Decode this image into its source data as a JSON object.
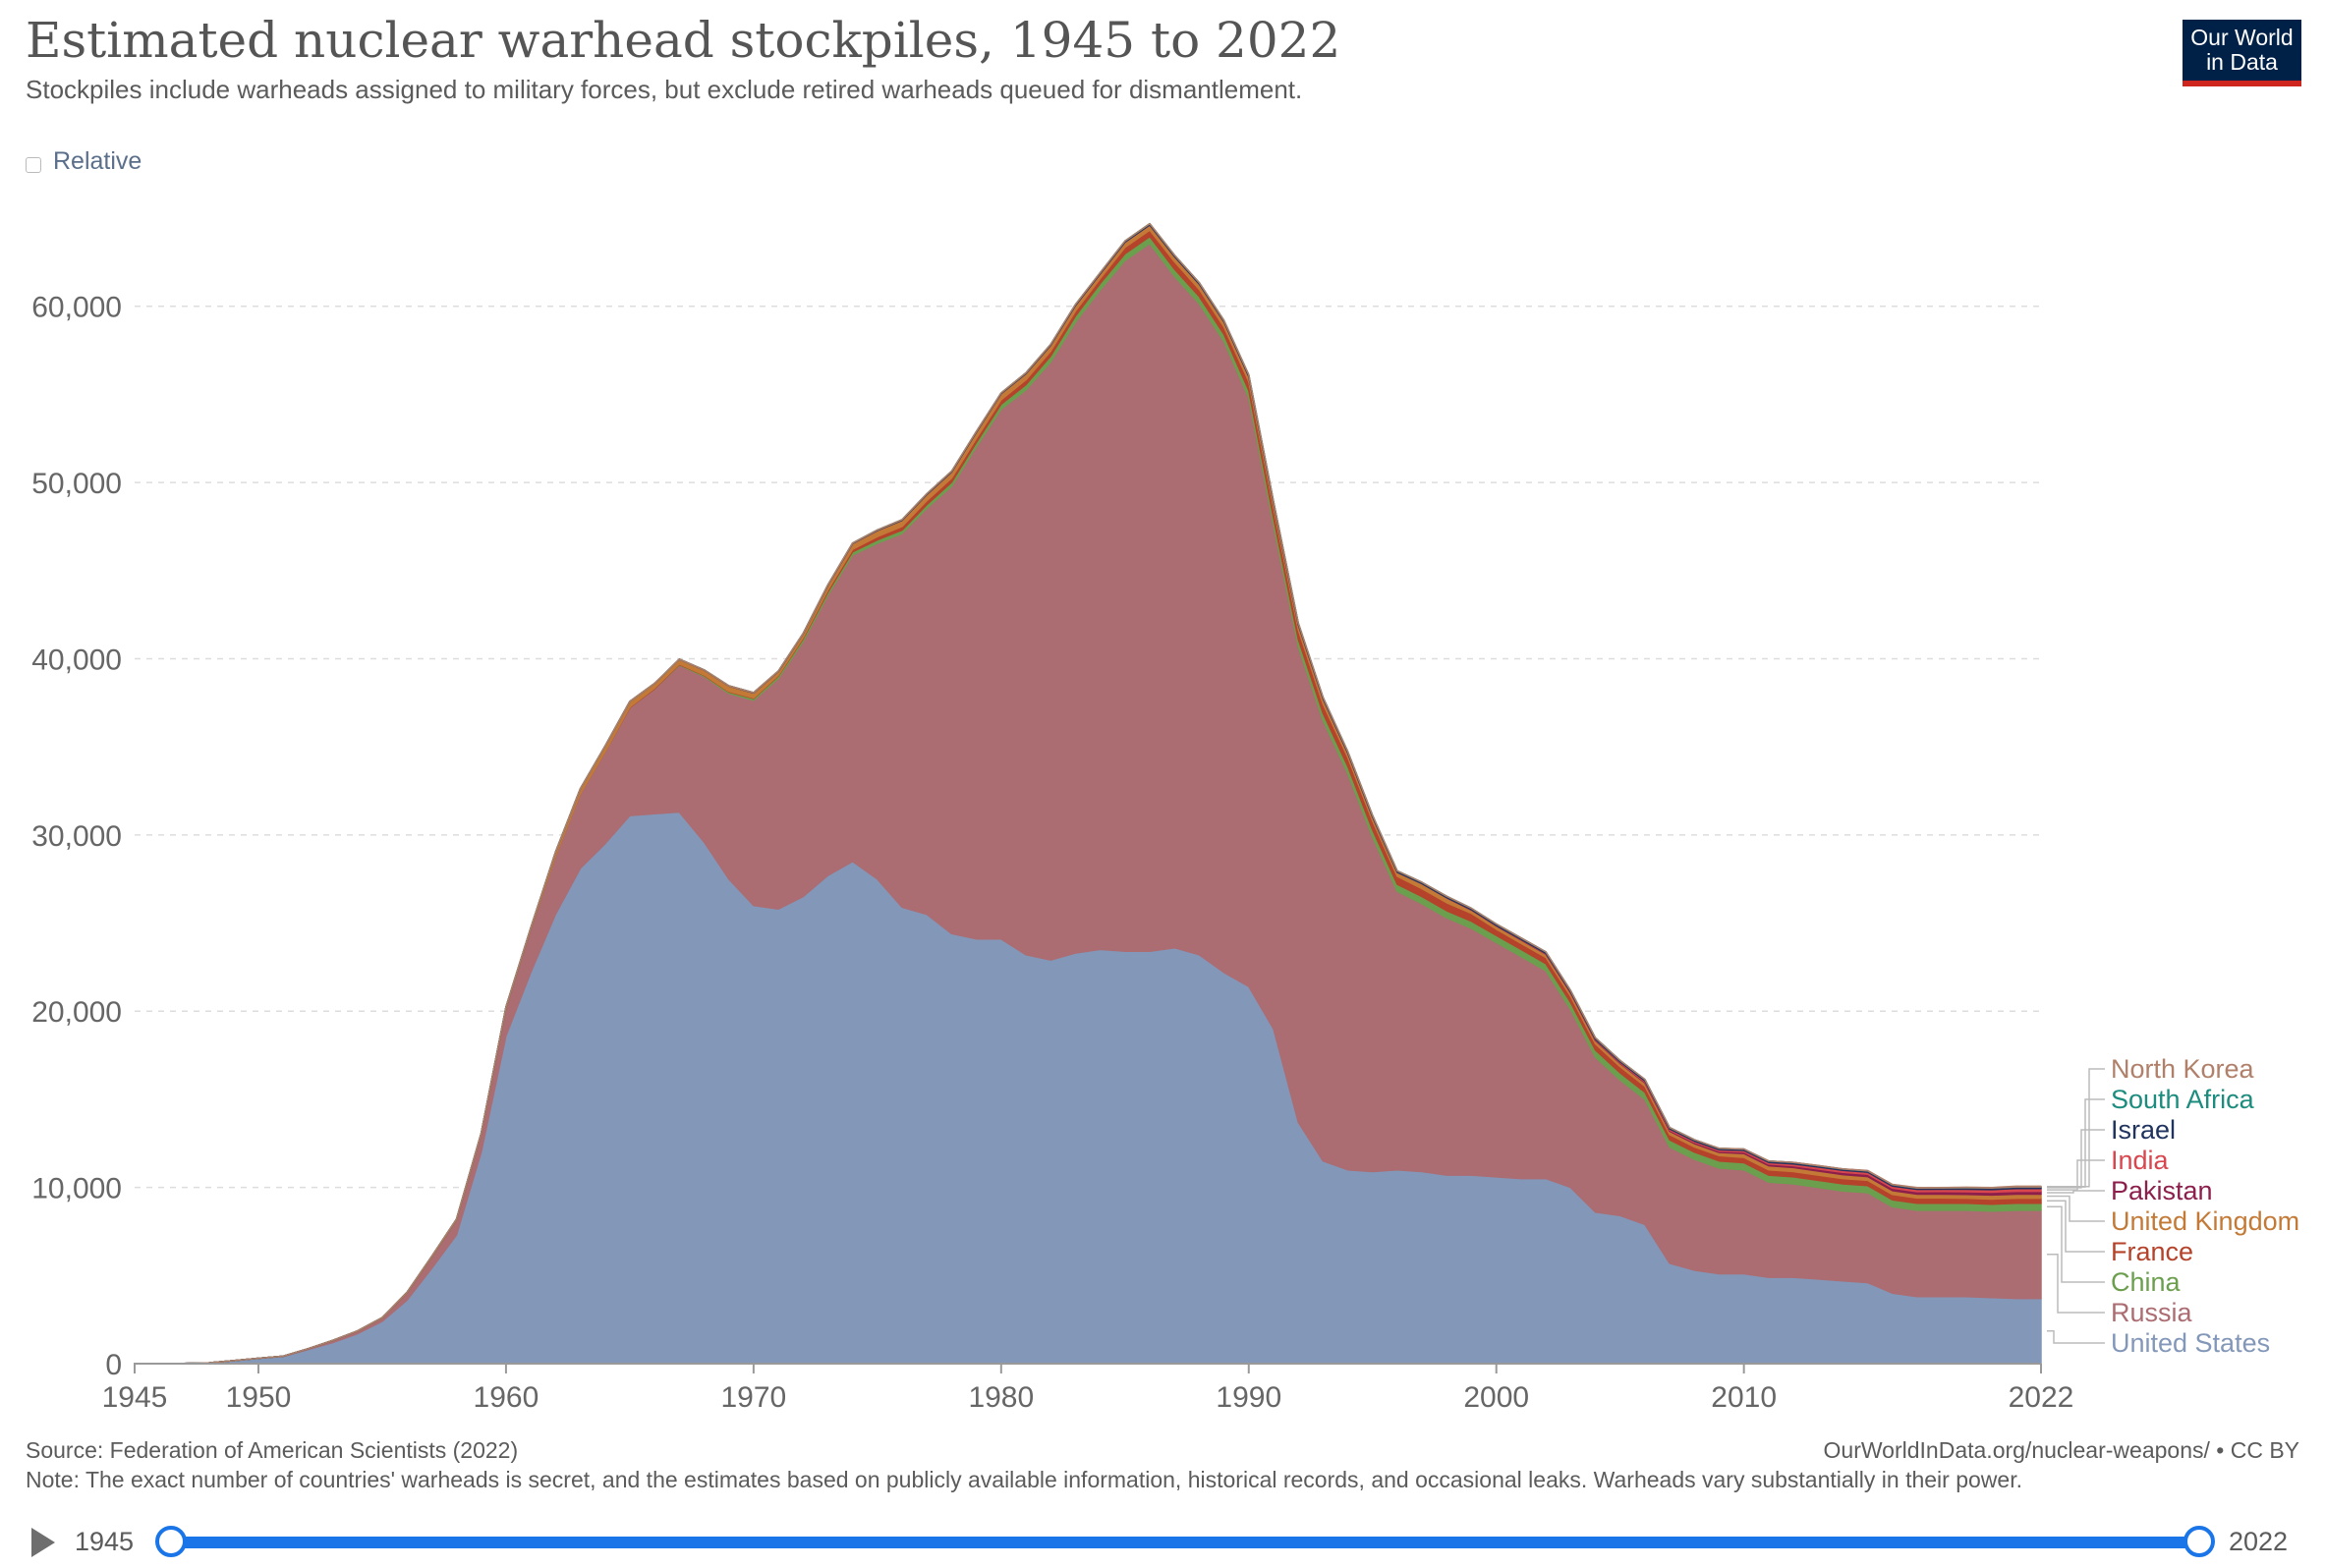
{
  "header": {
    "title": "Estimated nuclear warhead stockpiles, 1945 to 2022",
    "subtitle": "Stockpiles include warheads assigned to military forces, but exclude retired warheads queued for dismantlement.",
    "logo_line1": "Our World",
    "logo_line2": "in Data",
    "relative_label": "Relative"
  },
  "footer": {
    "source": "Source: Federation of American Scientists (2022)",
    "note": "Note: The exact number of countries' warheads is secret, and the estimates based on publicly available information, historical records, and occasional leaks. Warheads vary substantially in their power.",
    "credit": "OurWorldInData.org/nuclear-weapons/ • CC BY"
  },
  "timeline": {
    "start_label": "1945",
    "end_label": "2022",
    "start_value": 1945,
    "end_value": 2022
  },
  "colors": {
    "United States": "#8397b9",
    "Russia": "#ab6c72",
    "China": "#6b9f4e",
    "France": "#b5422a",
    "United Kingdom": "#c47a37",
    "Pakistan": "#8c1f4c",
    "India": "#d8464e",
    "Israel": "#21345f",
    "South Africa": "#1c8c7e",
    "North Korea": "#b0806a"
  },
  "chart_data": {
    "type": "area",
    "stacked": true,
    "title": "Estimated nuclear warhead stockpiles, 1945 to 2022",
    "xlabel": "",
    "ylabel": "",
    "xlim": [
      1945,
      2022
    ],
    "ylim": [
      0,
      65000
    ],
    "x_ticks": [
      1945,
      1950,
      1960,
      1970,
      1980,
      1990,
      2000,
      2010,
      2022
    ],
    "y_ticks": [
      0,
      10000,
      20000,
      30000,
      40000,
      50000,
      60000
    ],
    "y_tick_labels": [
      "0",
      "10,000",
      "20,000",
      "30,000",
      "40,000",
      "50,000",
      "60,000"
    ],
    "grid": "horizontal dashed",
    "legend": "right",
    "x": [
      1945,
      1946,
      1947,
      1948,
      1949,
      1950,
      1951,
      1952,
      1953,
      1954,
      1955,
      1956,
      1957,
      1958,
      1959,
      1960,
      1961,
      1962,
      1963,
      1964,
      1965,
      1966,
      1967,
      1968,
      1969,
      1970,
      1971,
      1972,
      1973,
      1974,
      1975,
      1976,
      1977,
      1978,
      1979,
      1980,
      1981,
      1982,
      1983,
      1984,
      1985,
      1986,
      1987,
      1988,
      1989,
      1990,
      1991,
      1992,
      1993,
      1994,
      1995,
      1996,
      1997,
      1998,
      1999,
      2000,
      2001,
      2002,
      2003,
      2004,
      2005,
      2006,
      2007,
      2008,
      2009,
      2010,
      2011,
      2012,
      2013,
      2014,
      2015,
      2016,
      2017,
      2018,
      2019,
      2020,
      2021,
      2022
    ],
    "series": [
      {
        "name": "United States",
        "values": [
          2,
          9,
          13,
          50,
          170,
          300,
          400,
          800,
          1200,
          1700,
          2400,
          3600,
          5400,
          7300,
          12000,
          18600,
          22200,
          25500,
          28100,
          29500,
          31100,
          31200,
          31300,
          29600,
          27500,
          26000,
          25800,
          26500,
          27700,
          28500,
          27500,
          25900,
          25500,
          24400,
          24100,
          24100,
          23200,
          22900,
          23300,
          23500,
          23400,
          23400,
          23600,
          23200,
          22200,
          21400,
          19000,
          13700,
          11500,
          11000,
          10900,
          11000,
          10900,
          10700,
          10700,
          10600,
          10500,
          10500,
          10000,
          8600,
          8400,
          7900,
          5700,
          5300,
          5100,
          5100,
          4900,
          4900,
          4800,
          4700,
          4600,
          4000,
          3800,
          3800,
          3800,
          3750,
          3700,
          3700
        ]
      },
      {
        "name": "Russia",
        "values": [
          0,
          0,
          0,
          0,
          1,
          5,
          25,
          50,
          120,
          150,
          200,
          426,
          660,
          869,
          1060,
          1605,
          2471,
          3322,
          4238,
          5221,
          6129,
          7089,
          8339,
          9399,
          10538,
          11643,
          13092,
          14478,
          15915,
          17385,
          19055,
          21205,
          23044,
          25393,
          27935,
          30062,
          32049,
          33952,
          35804,
          37431,
          39197,
          40159,
          38107,
          36949,
          35805,
          33417,
          28595,
          27000,
          25000,
          22500,
          19000,
          15800,
          15200,
          14600,
          14000,
          13300,
          12600,
          11800,
          10100,
          8800,
          7700,
          7100,
          6600,
          6300,
          6000,
          5900,
          5400,
          5300,
          5200,
          5100,
          5100,
          4900,
          4900,
          4900,
          4900,
          4900,
          5000,
          5000
        ]
      },
      {
        "name": "China",
        "values": [
          0,
          0,
          0,
          0,
          0,
          0,
          0,
          0,
          0,
          0,
          0,
          0,
          0,
          0,
          0,
          0,
          0,
          0,
          0,
          0,
          1,
          5,
          25,
          50,
          75,
          100,
          130,
          150,
          170,
          180,
          185,
          190,
          200,
          220,
          235,
          280,
          300,
          320,
          340,
          360,
          380,
          400,
          400,
          400,
          400,
          400,
          400,
          400,
          400,
          400,
          400,
          400,
          400,
          400,
          400,
          400,
          400,
          400,
          400,
          400,
          400,
          400,
          400,
          400,
          400,
          400,
          400,
          400,
          400,
          400,
          400,
          400,
          400,
          400,
          400,
          400,
          400,
          400
        ]
      },
      {
        "name": "France",
        "values": [
          0,
          0,
          0,
          0,
          0,
          0,
          0,
          0,
          0,
          0,
          0,
          0,
          0,
          0,
          0,
          0,
          0,
          0,
          0,
          4,
          32,
          36,
          36,
          36,
          36,
          36,
          45,
          70,
          116,
          145,
          188,
          212,
          228,
          235,
          235,
          250,
          274,
          279,
          280,
          280,
          360,
          355,
          420,
          410,
          410,
          505,
          540,
          540,
          525,
          510,
          500,
          450,
          450,
          450,
          450,
          350,
          350,
          350,
          350,
          350,
          350,
          350,
          300,
          300,
          300,
          300,
          300,
          300,
          300,
          300,
          300,
          300,
          300,
          300,
          290,
          290,
          290,
          290
        ]
      },
      {
        "name": "United Kingdom",
        "values": [
          0,
          0,
          0,
          0,
          0,
          0,
          0,
          0,
          1,
          5,
          10,
          15,
          20,
          22,
          25,
          30,
          50,
          205,
          280,
          310,
          310,
          270,
          270,
          280,
          308,
          280,
          220,
          220,
          275,
          325,
          350,
          350,
          350,
          350,
          350,
          350,
          350,
          335,
          320,
          270,
          300,
          300,
          300,
          300,
          300,
          300,
          300,
          300,
          300,
          250,
          234,
          234,
          281,
          281,
          185,
          185,
          185,
          185,
          185,
          185,
          185,
          185,
          185,
          185,
          185,
          225,
          225,
          225,
          225,
          225,
          215,
          215,
          215,
          215,
          215,
          225,
          225,
          225
        ]
      },
      {
        "name": "Pakistan",
        "values": [
          0,
          0,
          0,
          0,
          0,
          0,
          0,
          0,
          0,
          0,
          0,
          0,
          0,
          0,
          0,
          0,
          0,
          0,
          0,
          0,
          0,
          0,
          0,
          0,
          0,
          0,
          0,
          0,
          0,
          0,
          0,
          0,
          0,
          0,
          0,
          0,
          0,
          0,
          0,
          0,
          0,
          0,
          0,
          0,
          0,
          0,
          0,
          0,
          0,
          0,
          0,
          0,
          0,
          5,
          10,
          15,
          20,
          25,
          30,
          35,
          40,
          50,
          60,
          70,
          80,
          90,
          100,
          110,
          120,
          130,
          140,
          140,
          145,
          150,
          150,
          160,
          165,
          165
        ]
      },
      {
        "name": "India",
        "values": [
          0,
          0,
          0,
          0,
          0,
          0,
          0,
          0,
          0,
          0,
          0,
          0,
          0,
          0,
          0,
          0,
          0,
          0,
          0,
          0,
          0,
          0,
          0,
          0,
          0,
          0,
          0,
          0,
          0,
          1,
          1,
          1,
          1,
          1,
          1,
          1,
          1,
          1,
          1,
          1,
          1,
          1,
          1,
          1,
          1,
          1,
          1,
          1,
          1,
          1,
          1,
          1,
          1,
          5,
          10,
          15,
          20,
          25,
          30,
          40,
          50,
          60,
          70,
          70,
          70,
          80,
          90,
          100,
          110,
          110,
          110,
          120,
          130,
          130,
          140,
          150,
          160,
          160
        ]
      },
      {
        "name": "Israel",
        "values": [
          0,
          0,
          0,
          0,
          0,
          0,
          0,
          0,
          0,
          0,
          0,
          0,
          0,
          0,
          0,
          0,
          0,
          0,
          0,
          0,
          0,
          0,
          2,
          4,
          7,
          13,
          15,
          17,
          20,
          24,
          29,
          35,
          39,
          40,
          40,
          40,
          45,
          50,
          55,
          60,
          60,
          70,
          70,
          70,
          70,
          80,
          80,
          80,
          80,
          80,
          80,
          80,
          80,
          80,
          80,
          80,
          80,
          80,
          80,
          80,
          80,
          80,
          80,
          80,
          80,
          80,
          80,
          80,
          80,
          80,
          80,
          80,
          80,
          80,
          90,
          90,
          90,
          90
        ]
      },
      {
        "name": "South Africa",
        "values": [
          0,
          0,
          0,
          0,
          0,
          0,
          0,
          0,
          0,
          0,
          0,
          0,
          0,
          0,
          0,
          0,
          0,
          0,
          0,
          0,
          0,
          0,
          0,
          0,
          0,
          0,
          0,
          0,
          0,
          0,
          0,
          0,
          0,
          0,
          0,
          0,
          0,
          1,
          1,
          2,
          3,
          4,
          5,
          6,
          6,
          6,
          6,
          6,
          0,
          0,
          0,
          0,
          0,
          0,
          0,
          0,
          0,
          0,
          0,
          0,
          0,
          0,
          0,
          0,
          0,
          0,
          0,
          0,
          0,
          0,
          0,
          0,
          0,
          0,
          0,
          0,
          0,
          0
        ]
      },
      {
        "name": "North Korea",
        "values": [
          0,
          0,
          0,
          0,
          0,
          0,
          0,
          0,
          0,
          0,
          0,
          0,
          0,
          0,
          0,
          0,
          0,
          0,
          0,
          0,
          0,
          0,
          0,
          0,
          0,
          0,
          0,
          0,
          0,
          0,
          0,
          0,
          0,
          0,
          0,
          0,
          0,
          0,
          0,
          0,
          0,
          0,
          0,
          0,
          0,
          0,
          0,
          0,
          0,
          0,
          0,
          0,
          0,
          0,
          0,
          0,
          0,
          0,
          0,
          0,
          0,
          1,
          1,
          1,
          2,
          4,
          6,
          8,
          10,
          12,
          14,
          16,
          18,
          20,
          25,
          30,
          35,
          40
        ]
      }
    ]
  }
}
